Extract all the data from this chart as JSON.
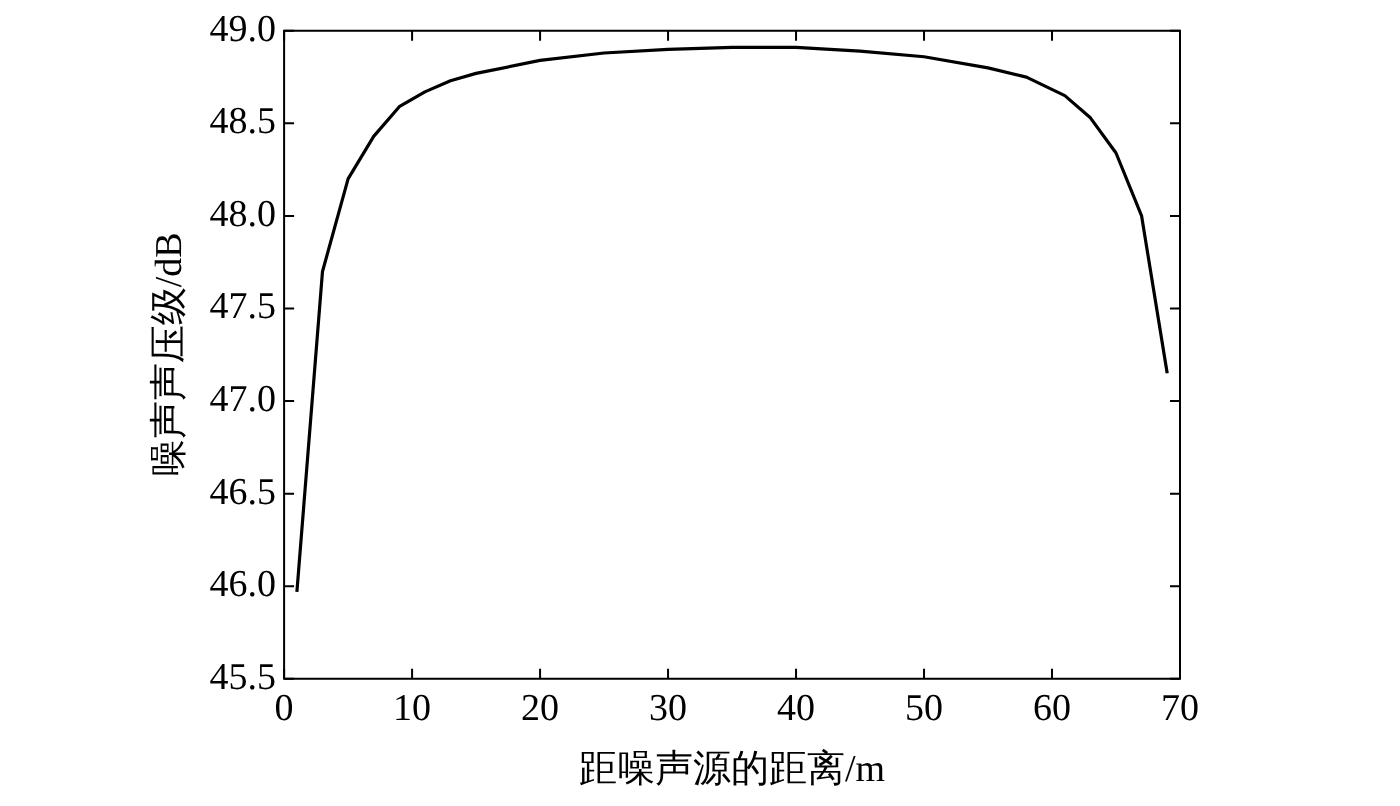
{
  "chart_data": {
    "type": "line",
    "xlabel": "距噪声源的距离/m",
    "ylabel": "噪声声压级/dB",
    "x": [
      1,
      3,
      5,
      7,
      9,
      11,
      13,
      15,
      20,
      25,
      30,
      35,
      40,
      45,
      50,
      55,
      58,
      61,
      63,
      65,
      67,
      69
    ],
    "series": [
      {
        "color": "#000000",
        "values": [
          45.97,
          47.7,
          48.2,
          48.43,
          48.59,
          48.67,
          48.73,
          48.77,
          48.84,
          48.88,
          48.9,
          48.91,
          48.91,
          48.89,
          48.86,
          48.8,
          48.75,
          48.65,
          48.53,
          48.34,
          48.0,
          47.15
        ]
      }
    ],
    "xlim": [
      0,
      70
    ],
    "xticks": [
      0,
      10,
      20,
      30,
      40,
      50,
      60,
      70
    ],
    "ylim": [
      45.5,
      49
    ],
    "yticks": [
      {
        "value": 45.5,
        "label": "45.5"
      },
      {
        "value": 46,
        "label": "46.0"
      },
      {
        "value": 46.5,
        "label": "46.5"
      },
      {
        "value": 47,
        "label": "47.0"
      },
      {
        "value": 47.5,
        "label": "47.5"
      },
      {
        "value": 48,
        "label": "48.0"
      },
      {
        "value": 48.5,
        "label": "48.5"
      },
      {
        "value": 49,
        "label": "49.0"
      }
    ],
    "grid": false,
    "legend": false,
    "marker": "none",
    "line_style": "solid"
  }
}
